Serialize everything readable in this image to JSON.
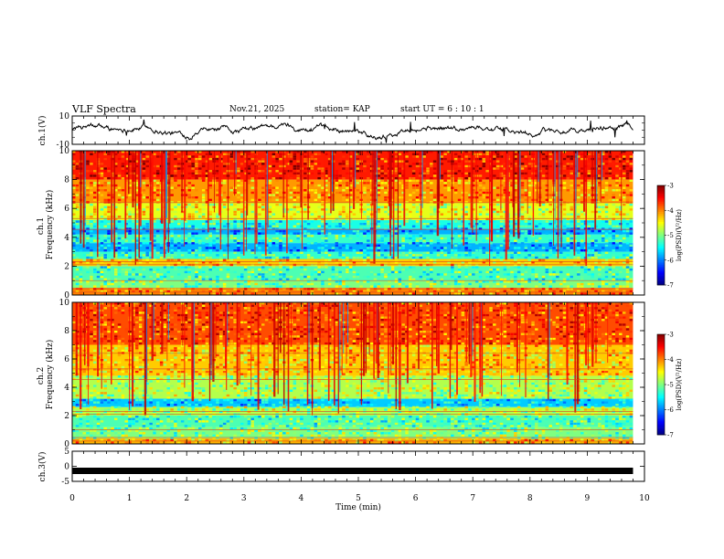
{
  "header": {
    "title": "VLF Spectra",
    "date": "Nov.21, 2025",
    "station": "station= KAP",
    "start_ut": "start  UT =   6 : 10 : 1"
  },
  "chart_data": [
    {
      "type": "line",
      "name": "ch1-waveform",
      "ylabel": "ch.1(V)",
      "ylim": [
        -10,
        10
      ],
      "ytick_labels": [
        "10",
        "-10"
      ],
      "x_range_min": [
        0,
        9.8
      ],
      "description_values": "noisy waveform oscillating roughly between -5 and 5 V"
    },
    {
      "type": "heatmap",
      "name": "ch1-spectrogram",
      "ylabel": "ch.1 Frequency (kHz)",
      "ylim": [
        0,
        10
      ],
      "ytick_labels": [
        "0",
        "2",
        "4",
        "6",
        "8",
        "10"
      ],
      "colorbar": {
        "label": "log(PSD)(V²/Hz)",
        "range": [
          -7,
          -3
        ],
        "ticks": [
          "-3",
          "-4",
          "-5",
          "-6",
          "-7"
        ]
      },
      "bands_khz": [
        {
          "from": 0,
          "to": 0.5,
          "level": -4.0
        },
        {
          "from": 0.5,
          "to": 1.0,
          "level": -5.0
        },
        {
          "from": 1.0,
          "to": 2.0,
          "level": -5.2
        },
        {
          "from": 2.0,
          "to": 2.5,
          "level": -4.3
        },
        {
          "from": 2.5,
          "to": 3.0,
          "level": -5.3
        },
        {
          "from": 3.0,
          "to": 3.6,
          "level": -5.8
        },
        {
          "from": 3.6,
          "to": 4.2,
          "level": -5.3
        },
        {
          "from": 4.2,
          "to": 4.6,
          "level": -5.8
        },
        {
          "from": 4.6,
          "to": 5.2,
          "level": -5.4
        },
        {
          "from": 5.2,
          "to": 6.4,
          "level": -4.6
        },
        {
          "from": 6.4,
          "to": 8.0,
          "level": -4.1
        },
        {
          "from": 8.0,
          "to": 10.0,
          "level": -3.6
        }
      ]
    },
    {
      "type": "heatmap",
      "name": "ch2-spectrogram",
      "ylabel": "ch.2 Frequency (kHz)",
      "ylim": [
        0,
        10
      ],
      "ytick_labels": [
        "0",
        "2",
        "4",
        "6",
        "8",
        "10"
      ],
      "colorbar": {
        "label": "log(PSD)(V²/Hz)",
        "range": [
          -7,
          -3
        ],
        "ticks": [
          "-3",
          "-4",
          "-5",
          "-6",
          "-7"
        ]
      },
      "bands_khz": [
        {
          "from": 0,
          "to": 0.4,
          "level": -4.2
        },
        {
          "from": 0.4,
          "to": 1.2,
          "level": -5.0
        },
        {
          "from": 1.2,
          "to": 2.0,
          "level": -5.2
        },
        {
          "from": 2.0,
          "to": 2.6,
          "level": -4.8
        },
        {
          "from": 2.6,
          "to": 3.2,
          "level": -5.7
        },
        {
          "from": 3.2,
          "to": 4.8,
          "level": -4.8
        },
        {
          "from": 4.8,
          "to": 7.0,
          "level": -4.3
        },
        {
          "from": 7.0,
          "to": 10.0,
          "level": -3.8
        }
      ]
    },
    {
      "type": "line",
      "name": "ch3-waveform",
      "ylabel": "ch.3(V)",
      "ylim": [
        -5,
        5
      ],
      "ytick_labels": [
        "5",
        "0",
        "-5"
      ],
      "level_v": -1.5
    }
  ],
  "x_axis": {
    "label": "Time  (min)",
    "range": [
      0,
      10
    ],
    "data_end_min": 9.8,
    "tick_labels": [
      "0",
      "1",
      "2",
      "3",
      "4",
      "5",
      "6",
      "7",
      "8",
      "9",
      "10"
    ]
  }
}
